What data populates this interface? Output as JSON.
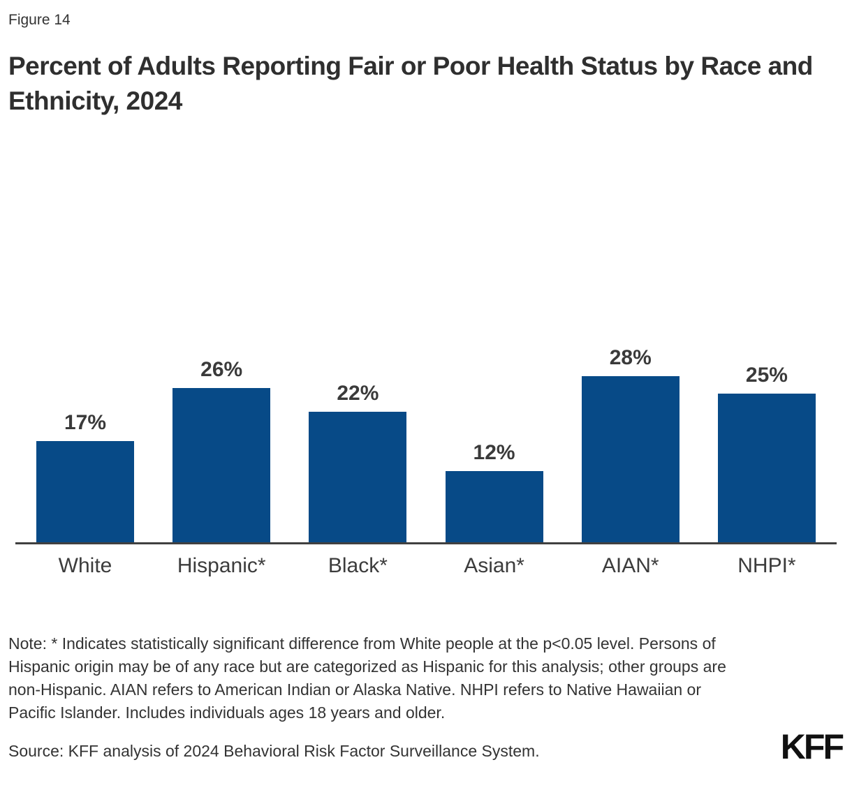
{
  "figure_label": "Figure 14",
  "title": "Percent of Adults Reporting Fair or Poor Health Status by Race and Ethnicity, 2024",
  "chart_data": {
    "type": "bar",
    "categories": [
      "White",
      "Hispanic*",
      "Black*",
      "Asian*",
      "AIAN*",
      "NHPI*"
    ],
    "values": [
      17,
      26,
      22,
      12,
      28,
      25
    ],
    "value_labels": [
      "17%",
      "26%",
      "22%",
      "12%",
      "28%",
      "25%"
    ],
    "title": "Percent of Adults Reporting Fair or Poor Health Status by Race and Ethnicity, 2024",
    "xlabel": "",
    "ylabel": "",
    "ylim": [
      0,
      30
    ],
    "grid": false,
    "legend": "none",
    "bar_color": "#074a87",
    "data_label_position": "above-bar",
    "y_axis_visible": false,
    "x_axis_line_color": "#404040"
  },
  "note": "Note: * Indicates statistically significant difference from White people at the p<0.05 level. Persons of Hispanic origin may be of any race but are categorized as Hispanic for this analysis; other groups are non-Hispanic. AIAN refers to American Indian or Alaska Native. NHPI refers to Native Hawaiian or Pacific Islander. Includes individuals ages 18 years and older.",
  "source": "Source: KFF analysis of 2024 Behavioral Risk Factor Surveillance System.",
  "logo_text": "KFF",
  "colors": {
    "bar": "#074a87",
    "text": "#333333",
    "axis": "#404040"
  }
}
